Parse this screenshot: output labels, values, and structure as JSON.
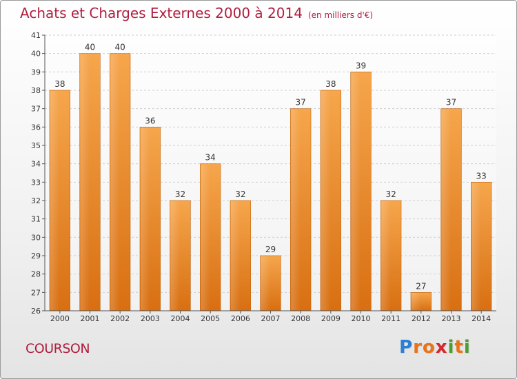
{
  "title": "Achats et Charges Externes 2000 à 2014",
  "unit": "(en milliers d'€)",
  "commune": "COURSON",
  "logo": {
    "letters": [
      "P",
      "r",
      "o",
      "x",
      "i",
      "t",
      "i"
    ],
    "colors": [
      "#2a7fd4",
      "#e8731a",
      "#e8731a",
      "#d6262e",
      "#4a9e2f",
      "#e8731a",
      "#4a9e2f"
    ]
  },
  "chart_data": {
    "type": "bar",
    "title": "Achats et Charges Externes 2000 à 2014",
    "subtitle": "(en milliers d'€)",
    "categories": [
      "2000",
      "2001",
      "2002",
      "2003",
      "2004",
      "2005",
      "2006",
      "2007",
      "2008",
      "2009",
      "2010",
      "2011",
      "2012",
      "2013",
      "2014"
    ],
    "values": [
      38,
      40,
      40,
      36,
      32,
      34,
      32,
      29,
      37,
      38,
      39,
      32,
      27,
      37,
      33
    ],
    "ylim": [
      26,
      41
    ],
    "yticks": [
      26,
      27,
      28,
      29,
      30,
      31,
      32,
      33,
      34,
      35,
      36,
      37,
      38,
      39,
      40,
      41
    ],
    "grid": true,
    "bar_color": "#f0962f",
    "xlabel": "",
    "ylabel": ""
  }
}
